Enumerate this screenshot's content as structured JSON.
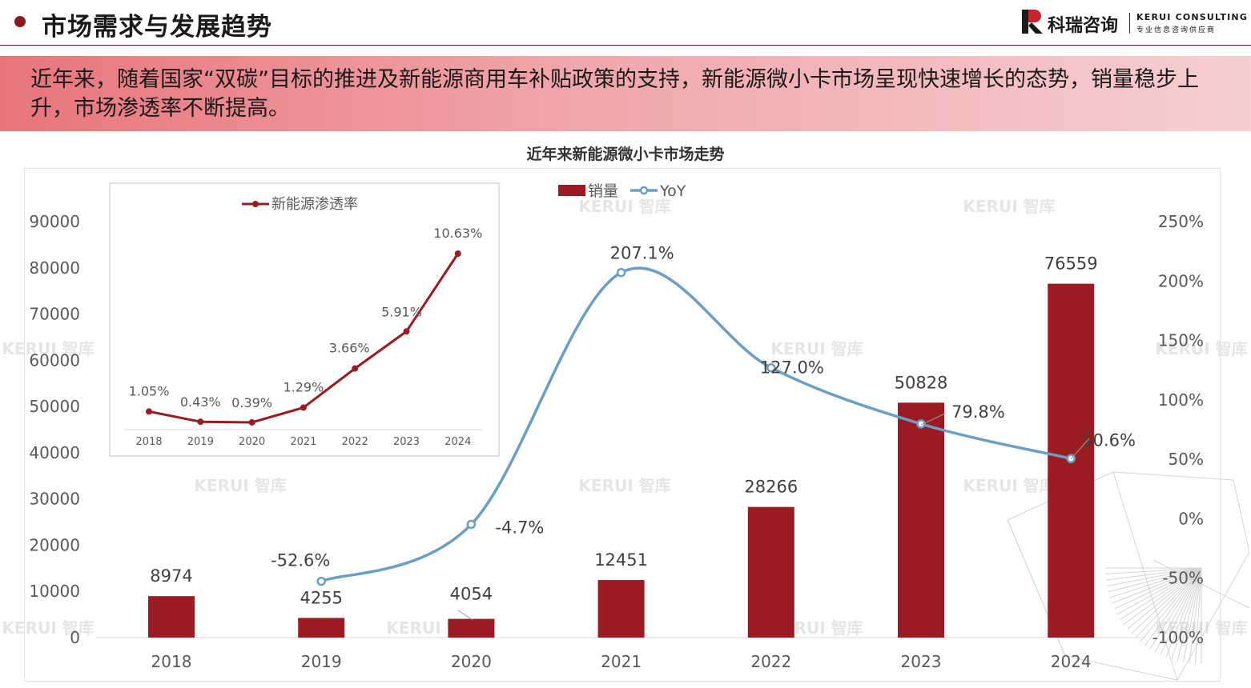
{
  "header": {
    "title": "市场需求与发展趋势",
    "logo_cn": "科瑞咨询",
    "logo_en": "KERUI CONSULTING",
    "logo_sub": "专业信息咨询供应商"
  },
  "banner": {
    "text": "近年来，随着国家“双碳”目标的推进及新能源商用车补贴政策的支持，新能源微小卡市场呈现快速增长的态势，销量稳步上升，市场渗透率不断提高。"
  },
  "watermark": "KERUI 智库",
  "colors": {
    "accent": "#9b1b22",
    "line": "#6a9ec4",
    "banner_start": "#e8757c",
    "banner_end": "#f6cfd1"
  },
  "chart_data": [
    {
      "type": "bar",
      "title": "近年来新能源微小卡市场走势",
      "categories": [
        "2018",
        "2019",
        "2020",
        "2021",
        "2022",
        "2023",
        "2024"
      ],
      "series": [
        {
          "name": "销量",
          "type": "bar",
          "axis": "left",
          "values": [
            8974,
            4255,
            4054,
            12451,
            28266,
            50828,
            76559
          ],
          "labels": [
            "8974",
            "4255",
            "4054",
            "12451",
            "28266",
            "50828",
            "76559"
          ]
        },
        {
          "name": "YoY",
          "type": "line",
          "axis": "right",
          "values": [
            null,
            -52.6,
            -4.7,
            207.1,
            127.0,
            79.8,
            50.6
          ],
          "labels": [
            "",
            "-52.6%",
            "-4.7%",
            "207.1%",
            "127.0%",
            "79.8%",
            "50.6%"
          ]
        }
      ],
      "left_axis": {
        "ylim": [
          0,
          90000
        ],
        "ticks": [
          "0",
          "10000",
          "20000",
          "30000",
          "40000",
          "50000",
          "60000",
          "70000",
          "80000",
          "90000"
        ]
      },
      "right_axis": {
        "ylim": [
          -100,
          250
        ],
        "ticks": [
          "-100%",
          "-50%",
          "0%",
          "50%",
          "100%",
          "150%",
          "200%",
          "250%"
        ]
      },
      "legend": "top-center",
      "grid": false
    },
    {
      "type": "line",
      "categories": [
        "2018",
        "2019",
        "2020",
        "2021",
        "2022",
        "2023",
        "2024"
      ],
      "series": [
        {
          "name": "新能源渗透率",
          "values": [
            1.05,
            0.43,
            0.39,
            1.29,
            3.66,
            5.91,
            10.63
          ],
          "labels": [
            "1.05%",
            "0.43%",
            "0.39%",
            "1.29%",
            "3.66%",
            "5.91%",
            "10.63%"
          ]
        }
      ],
      "legend": "top",
      "grid": false
    }
  ]
}
